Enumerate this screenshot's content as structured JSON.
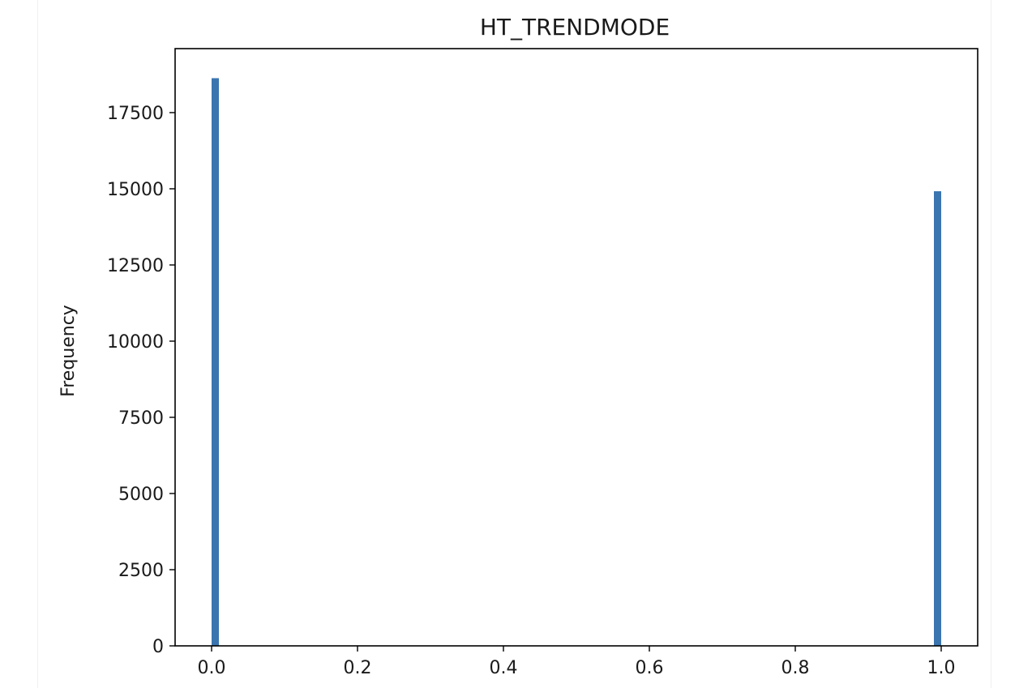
{
  "chart_data": {
    "type": "bar",
    "subtype": "histogram",
    "title": "HT_TRENDMODE",
    "xlabel": "",
    "ylabel": "Frequency",
    "xlim": [
      -0.05,
      1.05
    ],
    "ylim": [
      0,
      19600
    ],
    "bin_width": 0.01,
    "x_ticks": [
      0.0,
      0.2,
      0.4,
      0.6,
      0.8,
      1.0
    ],
    "x_tick_labels": [
      "0.0",
      "0.2",
      "0.4",
      "0.6",
      "0.8",
      "1.0"
    ],
    "y_ticks": [
      0,
      2500,
      5000,
      7500,
      10000,
      12500,
      15000,
      17500
    ],
    "y_tick_labels": [
      "0",
      "2500",
      "5000",
      "7500",
      "10000",
      "12500",
      "15000",
      "17500"
    ],
    "bins": [
      {
        "x": 0.0,
        "count": 18630
      },
      {
        "x": 0.99,
        "count": 14920
      }
    ],
    "bar_color": "#3a75b0",
    "grid": false,
    "legend": "none"
  }
}
